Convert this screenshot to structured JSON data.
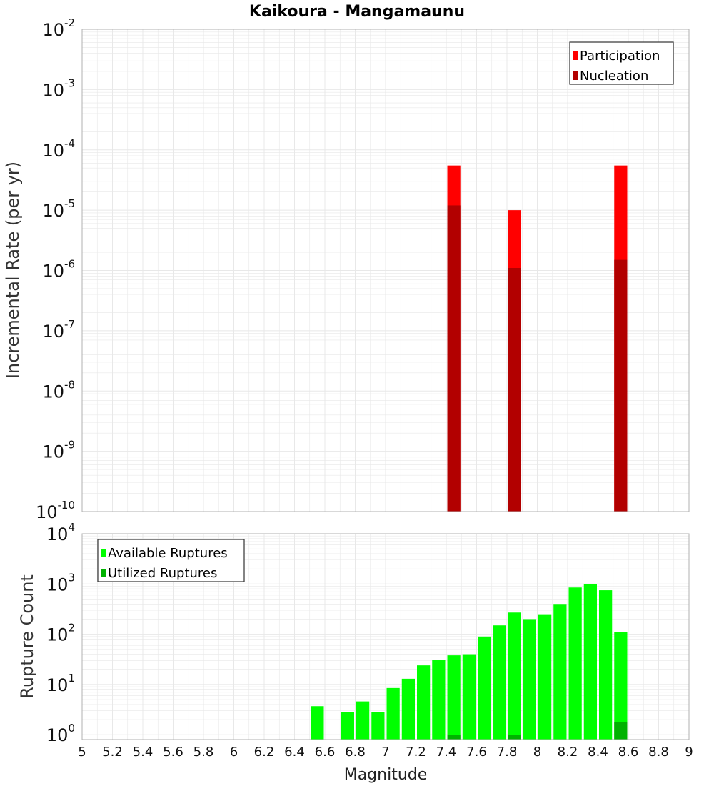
{
  "chart_data": [
    {
      "type": "bar",
      "title": "Kaikoura - Mangamaunu",
      "xlabel": "",
      "ylabel": "Incremental Rate (per yr)",
      "yscale": "log",
      "ylim": [
        1e-10,
        0.01
      ],
      "xlim": [
        5,
        9
      ],
      "bin_width": 0.1,
      "grid": true,
      "legend_position": "top-right",
      "y_tick_exponents": [
        "-2",
        "-3",
        "-4",
        "-5",
        "-6",
        "-7",
        "-8",
        "-9",
        "-10"
      ],
      "series": [
        {
          "name": "Participation",
          "color": "#ff0000",
          "x": [
            7.45,
            7.85,
            8.55
          ],
          "values": [
            5.5e-05,
            1e-05,
            5.5e-05
          ]
        },
        {
          "name": "Nucleation",
          "color": "#b20000",
          "x": [
            7.45,
            7.85,
            8.55
          ],
          "values": [
            1.2e-05,
            1.1e-06,
            1.5e-06
          ]
        }
      ]
    },
    {
      "type": "bar",
      "title": "",
      "xlabel": "Magnitude",
      "ylabel": "Rupture Count",
      "yscale": "log",
      "ylim": [
        0.8,
        10000
      ],
      "xlim": [
        5,
        9
      ],
      "bin_width": 0.1,
      "grid": true,
      "legend_position": "top-left",
      "y_tick_exponents": [
        "4",
        "3",
        "2",
        "1",
        "0"
      ],
      "x_tick_labels": [
        "5",
        "5.2",
        "5.4",
        "5.6",
        "5.8",
        "6",
        "6.2",
        "6.4",
        "6.6",
        "6.8",
        "7",
        "7.2",
        "7.4",
        "7.6",
        "7.8",
        "8",
        "8.2",
        "8.4",
        "8.6",
        "8.8",
        "9"
      ],
      "series": [
        {
          "name": "Available Ruptures",
          "color": "#00ff00",
          "x": [
            6.55,
            6.75,
            6.85,
            6.95,
            7.05,
            7.15,
            7.25,
            7.35,
            7.45,
            7.55,
            7.65,
            7.75,
            7.85,
            7.95,
            8.05,
            8.15,
            8.25,
            8.35,
            8.45,
            8.55
          ],
          "values": [
            3.7,
            2.8,
            4.6,
            2.8,
            8.5,
            13,
            24,
            31,
            38,
            40,
            90,
            150,
            270,
            200,
            250,
            400,
            850,
            1000,
            750,
            110
          ]
        },
        {
          "name": "Utilized Ruptures",
          "color": "#00b200",
          "x": [
            7.45,
            7.85,
            8.55
          ],
          "values": [
            1,
            1,
            1.8
          ]
        }
      ]
    }
  ],
  "ui": {
    "title": "Kaikoura - Mangamaunu",
    "top_ylabel": "Incremental Rate (per yr)",
    "bottom_ylabel": "Rupture Count",
    "xlabel": "Magnitude",
    "tick_base": "10",
    "grid_color": "#e8e8e8",
    "frame_color": "#b0b0b0",
    "legend_top": [
      "Participation",
      "Nucleation"
    ],
    "legend_bottom": [
      "Available Ruptures",
      "Utilized Ruptures"
    ]
  }
}
